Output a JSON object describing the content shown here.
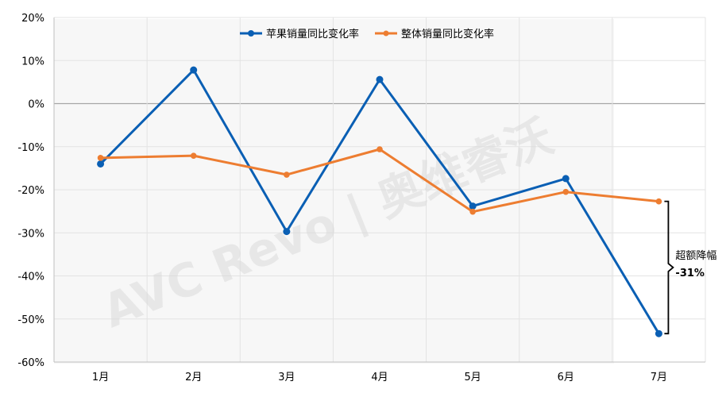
{
  "chart_data": {
    "type": "line",
    "title": "",
    "xlabel": "",
    "ylabel": "",
    "categories": [
      "1月",
      "2月",
      "3月",
      "4月",
      "5月",
      "6月",
      "7月"
    ],
    "ylim": [
      -60,
      20
    ],
    "yticks": [
      20,
      10,
      0,
      -10,
      -20,
      -30,
      -40,
      -50,
      -60
    ],
    "ytick_format": "%",
    "grid": true,
    "legend_position": "top-center",
    "series": [
      {
        "name": "苹果销量同比变化率",
        "color": "#0a5fb4",
        "values": [
          -14,
          7.8,
          -29.7,
          5.6,
          -23.8,
          -17.4,
          -53.4
        ]
      },
      {
        "name": "整体销量同比变化率",
        "color": "#ed7d31",
        "values": [
          -12.6,
          -12.1,
          -16.5,
          -10.6,
          -25.1,
          -20.5,
          -22.7
        ]
      }
    ],
    "annotation": {
      "label": "超额降幅",
      "value": "-31%",
      "category": "7月",
      "from_value": -22.7,
      "to_value": -53.4
    }
  },
  "watermark": "AVC Revo | 奥维睿沃"
}
